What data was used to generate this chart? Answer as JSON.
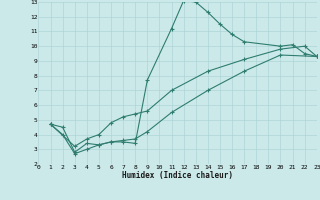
{
  "xlabel": "Humidex (Indice chaleur)",
  "xlim": [
    0,
    23
  ],
  "ylim": [
    2,
    13
  ],
  "xticks": [
    0,
    1,
    2,
    3,
    4,
    5,
    6,
    7,
    8,
    9,
    10,
    11,
    12,
    13,
    14,
    15,
    16,
    17,
    18,
    19,
    20,
    21,
    22,
    23
  ],
  "yticks": [
    2,
    3,
    4,
    5,
    6,
    7,
    8,
    9,
    10,
    11,
    12,
    13
  ],
  "bg_color": "#cce9ea",
  "grid_color": "#aed4d6",
  "line_color": "#2e7d6e",
  "lines": [
    {
      "x": [
        1,
        2,
        3,
        4,
        5,
        6,
        7,
        8,
        9,
        11,
        12,
        13,
        14,
        15,
        16,
        17,
        20,
        21,
        22,
        23
      ],
      "y": [
        4.7,
        4.5,
        2.8,
        3.4,
        3.3,
        3.5,
        3.5,
        3.4,
        7.7,
        11.2,
        13.1,
        13.0,
        12.3,
        11.5,
        10.8,
        10.3,
        10.0,
        10.1,
        9.5,
        9.3
      ]
    },
    {
      "x": [
        1,
        3,
        4,
        5,
        6,
        7,
        8,
        9,
        11,
        14,
        17,
        20,
        22,
        23
      ],
      "y": [
        4.7,
        3.2,
        3.7,
        4.0,
        4.8,
        5.2,
        5.4,
        5.6,
        7.0,
        8.3,
        9.1,
        9.8,
        10.0,
        9.3
      ]
    },
    {
      "x": [
        1,
        2,
        3,
        4,
        5,
        6,
        7,
        8,
        9,
        11,
        14,
        17,
        20,
        23
      ],
      "y": [
        4.7,
        4.0,
        2.7,
        3.0,
        3.3,
        3.5,
        3.6,
        3.7,
        4.2,
        5.5,
        7.0,
        8.3,
        9.4,
        9.3
      ]
    }
  ]
}
